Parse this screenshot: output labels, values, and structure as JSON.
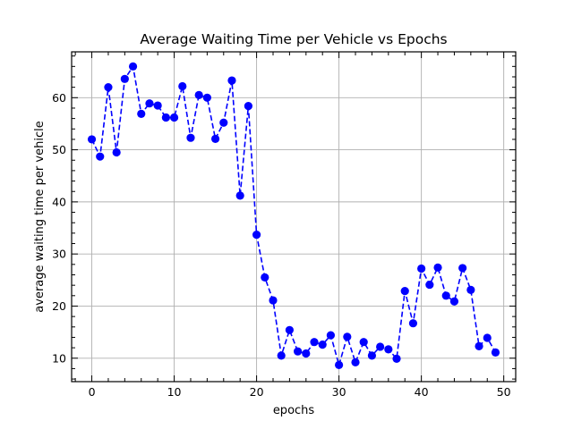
{
  "chart_data": {
    "type": "line",
    "title": "Average Waiting Time per Vehicle vs Epochs",
    "xlabel": "epochs",
    "ylabel": "average waiting time per vehicle",
    "xlim": [
      -2.45,
      51.45
    ],
    "ylim": [
      5.5,
      68.8
    ],
    "xticks": [
      0,
      10,
      20,
      30,
      40,
      50
    ],
    "yticks": [
      10,
      20,
      30,
      40,
      50,
      60
    ],
    "x_minor_step": 2,
    "y_minor_step": 2,
    "grid": true,
    "legend": "none",
    "series_color": "#0000ff",
    "line_style": "dashed",
    "marker": "circle",
    "series": [
      {
        "x": [
          0,
          1,
          2,
          3,
          4,
          5,
          6,
          7,
          8,
          9,
          10,
          11,
          12,
          13,
          14,
          15,
          16,
          17,
          18,
          19,
          20,
          21,
          22,
          23,
          24,
          25,
          26,
          27,
          28,
          29,
          30,
          31,
          32,
          33,
          34,
          35,
          36,
          37,
          38,
          39,
          40,
          41,
          42,
          43,
          44,
          45,
          46,
          47,
          48,
          49
        ],
        "values": [
          52.0,
          48.7,
          62.0,
          49.5,
          63.6,
          66.0,
          56.9,
          58.9,
          58.5,
          56.2,
          56.2,
          62.2,
          52.3,
          60.5,
          60.0,
          52.1,
          55.2,
          63.3,
          41.2,
          58.4,
          33.7,
          25.5,
          21.1,
          10.5,
          15.4,
          11.3,
          10.9,
          13.1,
          12.6,
          14.4,
          8.7,
          14.1,
          9.2,
          13.1,
          10.5,
          12.2,
          11.7,
          9.9,
          22.9,
          16.7,
          27.2,
          24.1,
          27.4,
          22.0,
          20.9,
          27.3,
          23.1,
          12.3,
          13.9,
          11.1
        ]
      }
    ]
  }
}
